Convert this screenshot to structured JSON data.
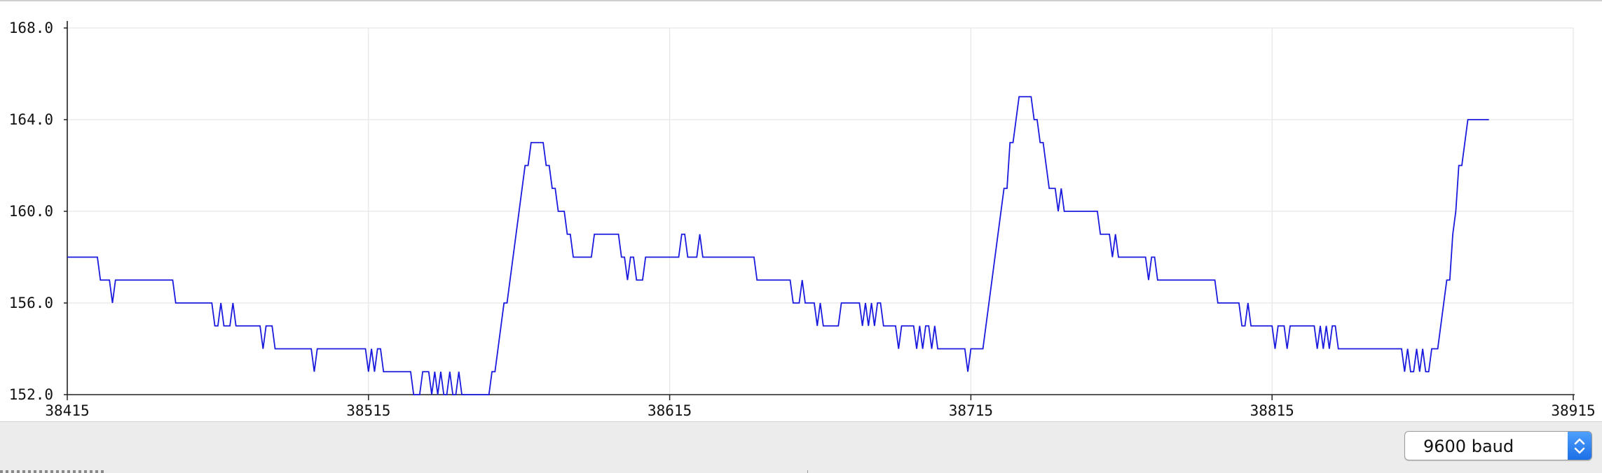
{
  "window": {
    "title": ""
  },
  "plotter": {
    "line_color": "#1a1adf",
    "grid_color": "#e6e6e6",
    "axis_color": "#222222"
  },
  "chart_data": {
    "type": "line",
    "title": "",
    "xlabel": "",
    "ylabel": "",
    "xlim": [
      38415,
      38915
    ],
    "ylim": [
      152.0,
      168.0
    ],
    "x_ticks": [
      "38415",
      "38515",
      "38615",
      "38715",
      "38815",
      "38915"
    ],
    "y_ticks": [
      "152.0",
      "156.0",
      "160.0",
      "164.0",
      "168.0"
    ],
    "grid": true,
    "legend": "none",
    "series": [
      {
        "color": "#1a1adf",
        "points": [
          [
            38415,
            158
          ],
          [
            38425,
            158
          ],
          [
            38426,
            157
          ],
          [
            38429,
            157
          ],
          [
            38430,
            156
          ],
          [
            38431,
            157
          ],
          [
            38440,
            157
          ],
          [
            38450,
            157
          ],
          [
            38451,
            156
          ],
          [
            38463,
            156
          ],
          [
            38464,
            155
          ],
          [
            38465,
            155
          ],
          [
            38466,
            156
          ],
          [
            38467,
            155
          ],
          [
            38469,
            155
          ],
          [
            38470,
            156
          ],
          [
            38471,
            155
          ],
          [
            38479,
            155
          ],
          [
            38480,
            154
          ],
          [
            38481,
            155
          ],
          [
            38483,
            155
          ],
          [
            38484,
            154
          ],
          [
            38486,
            154
          ],
          [
            38496,
            154
          ],
          [
            38497,
            153
          ],
          [
            38498,
            154
          ],
          [
            38514,
            154
          ],
          [
            38515,
            153
          ],
          [
            38516,
            154
          ],
          [
            38517,
            153
          ],
          [
            38518,
            154
          ],
          [
            38519,
            154
          ],
          [
            38520,
            153
          ],
          [
            38529,
            153
          ],
          [
            38530,
            152
          ],
          [
            38532,
            152
          ],
          [
            38533,
            153
          ],
          [
            38535,
            153
          ],
          [
            38536,
            152
          ],
          [
            38537,
            153
          ],
          [
            38538,
            152
          ],
          [
            38539,
            153
          ],
          [
            38540,
            152
          ],
          [
            38541,
            152
          ],
          [
            38542,
            153
          ],
          [
            38543,
            152
          ],
          [
            38544,
            152
          ],
          [
            38545,
            153
          ],
          [
            38546,
            152
          ],
          [
            38555,
            152
          ],
          [
            38556,
            153
          ],
          [
            38557,
            153
          ],
          [
            38558,
            154
          ],
          [
            38559,
            155
          ],
          [
            38560,
            156
          ],
          [
            38561,
            156
          ],
          [
            38563,
            158
          ],
          [
            38565,
            160
          ],
          [
            38567,
            162
          ],
          [
            38568,
            162
          ],
          [
            38569,
            163
          ],
          [
            38573,
            163
          ],
          [
            38574,
            162
          ],
          [
            38575,
            162
          ],
          [
            38576,
            161
          ],
          [
            38577,
            161
          ],
          [
            38578,
            160
          ],
          [
            38580,
            160
          ],
          [
            38581,
            159
          ],
          [
            38582,
            159
          ],
          [
            38583,
            158
          ],
          [
            38589,
            158
          ],
          [
            38590,
            159
          ],
          [
            38598,
            159
          ],
          [
            38599,
            158
          ],
          [
            38600,
            158
          ],
          [
            38601,
            157
          ],
          [
            38602,
            158
          ],
          [
            38603,
            158
          ],
          [
            38604,
            157
          ],
          [
            38606,
            157
          ],
          [
            38607,
            158
          ],
          [
            38618,
            158
          ],
          [
            38619,
            159
          ],
          [
            38620,
            159
          ],
          [
            38621,
            158
          ],
          [
            38624,
            158
          ],
          [
            38625,
            159
          ],
          [
            38626,
            158
          ],
          [
            38643,
            158
          ],
          [
            38644,
            157
          ],
          [
            38655,
            157
          ],
          [
            38656,
            156
          ],
          [
            38658,
            156
          ],
          [
            38659,
            157
          ],
          [
            38660,
            156
          ],
          [
            38663,
            156
          ],
          [
            38664,
            155
          ],
          [
            38665,
            156
          ],
          [
            38666,
            155
          ],
          [
            38671,
            155
          ],
          [
            38672,
            156
          ],
          [
            38678,
            156
          ],
          [
            38679,
            155
          ],
          [
            38680,
            156
          ],
          [
            38681,
            155
          ],
          [
            38682,
            156
          ],
          [
            38683,
            155
          ],
          [
            38684,
            156
          ],
          [
            38685,
            156
          ],
          [
            38686,
            155
          ],
          [
            38690,
            155
          ],
          [
            38691,
            154
          ],
          [
            38692,
            155
          ],
          [
            38696,
            155
          ],
          [
            38697,
            154
          ],
          [
            38698,
            155
          ],
          [
            38699,
            154
          ],
          [
            38700,
            155
          ],
          [
            38701,
            155
          ],
          [
            38702,
            154
          ],
          [
            38703,
            155
          ],
          [
            38704,
            154
          ],
          [
            38713,
            154
          ],
          [
            38714,
            153
          ],
          [
            38715,
            154
          ],
          [
            38719,
            154
          ],
          [
            38720,
            155
          ],
          [
            38721,
            156
          ],
          [
            38722,
            157
          ],
          [
            38723,
            158
          ],
          [
            38724,
            159
          ],
          [
            38725,
            160
          ],
          [
            38726,
            161
          ],
          [
            38727,
            161
          ],
          [
            38728,
            163
          ],
          [
            38729,
            163
          ],
          [
            38730,
            164
          ],
          [
            38731,
            165
          ],
          [
            38735,
            165
          ],
          [
            38736,
            164
          ],
          [
            38737,
            164
          ],
          [
            38738,
            163
          ],
          [
            38739,
            163
          ],
          [
            38740,
            162
          ],
          [
            38741,
            161
          ],
          [
            38743,
            161
          ],
          [
            38744,
            160
          ],
          [
            38745,
            161
          ],
          [
            38746,
            160
          ],
          [
            38757,
            160
          ],
          [
            38758,
            159
          ],
          [
            38761,
            159
          ],
          [
            38762,
            158
          ],
          [
            38763,
            159
          ],
          [
            38764,
            158
          ],
          [
            38773,
            158
          ],
          [
            38774,
            157
          ],
          [
            38775,
            158
          ],
          [
            38776,
            158
          ],
          [
            38777,
            157
          ],
          [
            38796,
            157
          ],
          [
            38797,
            156
          ],
          [
            38804,
            156
          ],
          [
            38805,
            155
          ],
          [
            38806,
            155
          ],
          [
            38807,
            156
          ],
          [
            38808,
            155
          ],
          [
            38815,
            155
          ],
          [
            38816,
            154
          ],
          [
            38817,
            155
          ],
          [
            38819,
            155
          ],
          [
            38820,
            154
          ],
          [
            38821,
            155
          ],
          [
            38829,
            155
          ],
          [
            38830,
            154
          ],
          [
            38831,
            155
          ],
          [
            38832,
            154
          ],
          [
            38833,
            155
          ],
          [
            38834,
            154
          ],
          [
            38835,
            155
          ],
          [
            38836,
            155
          ],
          [
            38837,
            154
          ],
          [
            38858,
            154
          ],
          [
            38859,
            153
          ],
          [
            38860,
            154
          ],
          [
            38861,
            153
          ],
          [
            38862,
            153
          ],
          [
            38863,
            154
          ],
          [
            38864,
            153
          ],
          [
            38865,
            154
          ],
          [
            38866,
            153
          ],
          [
            38867,
            153
          ],
          [
            38868,
            154
          ],
          [
            38870,
            154
          ],
          [
            38871,
            155
          ],
          [
            38872,
            156
          ],
          [
            38873,
            157
          ],
          [
            38874,
            157
          ],
          [
            38875,
            159
          ],
          [
            38876,
            160
          ],
          [
            38877,
            162
          ],
          [
            38878,
            162
          ],
          [
            38879,
            163
          ],
          [
            38880,
            164
          ],
          [
            38887,
            164
          ]
        ]
      }
    ]
  },
  "footer": {
    "baud": {
      "selected": "9600 baud"
    }
  }
}
